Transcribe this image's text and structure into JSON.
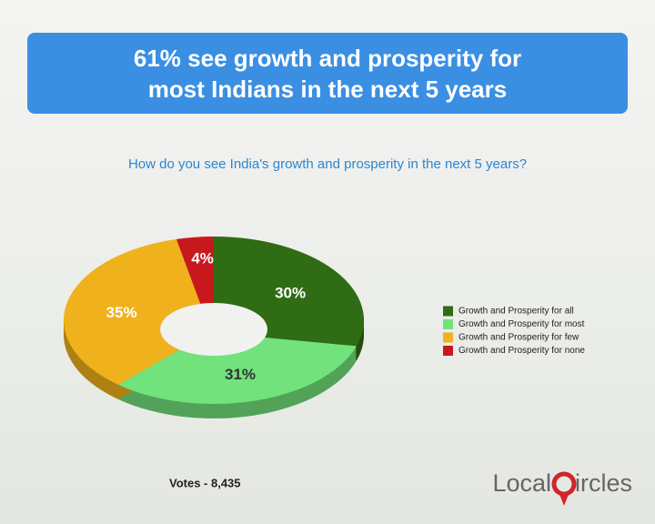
{
  "chart_data": {
    "type": "pie",
    "title": "61% see growth and prosperity for most Indians in the next 5 years",
    "subtitle": "How do you see India's growth and prosperity in the next 5 years?",
    "categories": [
      "Growth and Prosperity for all",
      "Growth and Prosperity for most",
      "Growth and Prosperity for few",
      "Growth and Prosperity for none"
    ],
    "values": [
      30,
      31,
      35,
      4
    ],
    "value_labels": [
      "30%",
      "31%",
      "35%",
      "4%"
    ],
    "colors": [
      "#2f6c14",
      "#72e27c",
      "#f0b21c",
      "#c8181e"
    ],
    "note": "Votes - 8,435",
    "legend": "right"
  },
  "logo": {
    "left": "Local",
    "right": "ircles"
  }
}
